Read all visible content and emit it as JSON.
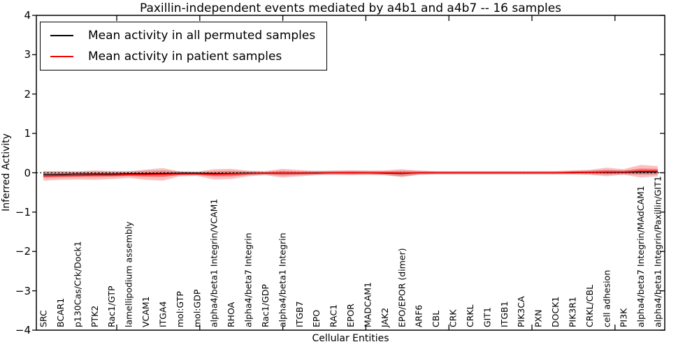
{
  "title": "Paxillin-independent events mediated by a4b1 and a4b7 -- 16 samples",
  "axes": {
    "xlabel": "Cellular Entities",
    "ylabel": "Inferred Activity",
    "ytick_labels": [
      "−4",
      "−3",
      "−2",
      "−1",
      "0",
      "1",
      "2",
      "3",
      "4"
    ]
  },
  "legend": {
    "entries": [
      {
        "label": "Mean activity in all permuted samples",
        "color": "#000000"
      },
      {
        "label": "Mean activity in patient samples",
        "color": "#ff0000"
      }
    ]
  },
  "chart_data": {
    "type": "line",
    "title": "Paxillin-independent events mediated by a4b1 and a4b7 -- 16 samples",
    "xlabel": "Cellular Entities",
    "ylabel": "Inferred Activity",
    "ylim": [
      -4,
      4
    ],
    "yticks": [
      -4,
      -3,
      -2,
      -1,
      0,
      1,
      2,
      3,
      4
    ],
    "grid": false,
    "legend_position": "upper left",
    "zero_line": {
      "show": true,
      "style": "dotted",
      "color": "#000000"
    },
    "categories": [
      "SRC",
      "BCAR1",
      "p130Cas/Crk/Dock1",
      "PTK2",
      "Rac1/GTP",
      "lamellipodium assembly",
      "VCAM1",
      "ITGA4",
      "mol:GTP",
      "mol:GDP",
      "alpha4/beta1 Integrin/VCAM1",
      "RHOA",
      "alpha4/beta7 Integrin",
      "Rac1/GDP",
      "alpha4/beta1 Integrin",
      "ITGB7",
      "EPO",
      "RAC1",
      "EPOR",
      "MADCAM1",
      "JAK2",
      "EPO/EPOR (dimer)",
      "ARF6",
      "CBL",
      "CRK",
      "CRKL",
      "GIT1",
      "ITGB1",
      "PIK3CA",
      "PXN",
      "DOCK1",
      "PIK3R1",
      "CRKL/CBL",
      "cell adhesion",
      "PI3K",
      "alpha4/beta7 Integrin/MAdCAM1",
      "alpha4/beta1 Integrin/Paxillin/GIT1"
    ],
    "series": [
      {
        "name": "Mean activity in all permuted samples",
        "color": "#000000",
        "line_width": 1.3,
        "band_color": "#999999",
        "band_opacity": 0.45,
        "inner_band_scale": 0,
        "values": [
          -0.04,
          -0.04,
          -0.03,
          -0.03,
          -0.03,
          -0.02,
          -0.02,
          -0.02,
          -0.01,
          -0.01,
          -0.02,
          -0.02,
          -0.01,
          -0.01,
          -0.01,
          -0.01,
          0,
          0,
          0,
          0,
          -0.01,
          -0.02,
          0,
          0,
          0,
          0,
          0,
          0,
          0,
          0,
          0,
          0,
          0.01,
          0.01,
          0.01,
          0.02,
          0.02
        ],
        "std": [
          0.07,
          0.07,
          0.06,
          0.06,
          0.06,
          0.06,
          0.07,
          0.08,
          0.05,
          0.04,
          0.06,
          0.07,
          0.05,
          0.04,
          0.06,
          0.05,
          0.05,
          0.05,
          0.05,
          0.05,
          0.05,
          0.07,
          0.05,
          0.04,
          0.04,
          0.04,
          0.04,
          0.04,
          0.04,
          0.04,
          0.04,
          0.04,
          0.05,
          0.06,
          0.05,
          0.07,
          0.07
        ]
      },
      {
        "name": "Mean activity in patient samples",
        "color": "#ff0000",
        "line_width": 1.6,
        "band_color": "#ff0000",
        "band_opacity": 0.25,
        "inner_band_scale": 0.45,
        "values": [
          -0.08,
          -0.07,
          -0.07,
          -0.06,
          -0.06,
          -0.05,
          -0.05,
          -0.04,
          -0.03,
          -0.03,
          -0.04,
          -0.03,
          -0.02,
          -0.01,
          -0.01,
          -0.01,
          -0.01,
          0,
          0,
          0,
          0,
          -0.01,
          0,
          0,
          0,
          0,
          0,
          0,
          0,
          0,
          0,
          0.01,
          0.01,
          0.02,
          0.02,
          0.04,
          0.04
        ],
        "std": [
          0.12,
          0.11,
          0.1,
          0.12,
          0.1,
          0.08,
          0.13,
          0.16,
          0.06,
          0.05,
          0.13,
          0.13,
          0.07,
          0.05,
          0.11,
          0.08,
          0.05,
          0.05,
          0.06,
          0.05,
          0.06,
          0.1,
          0.05,
          0.04,
          0.04,
          0.04,
          0.04,
          0.04,
          0.04,
          0.04,
          0.04,
          0.05,
          0.06,
          0.11,
          0.07,
          0.16,
          0.13
        ]
      }
    ]
  }
}
